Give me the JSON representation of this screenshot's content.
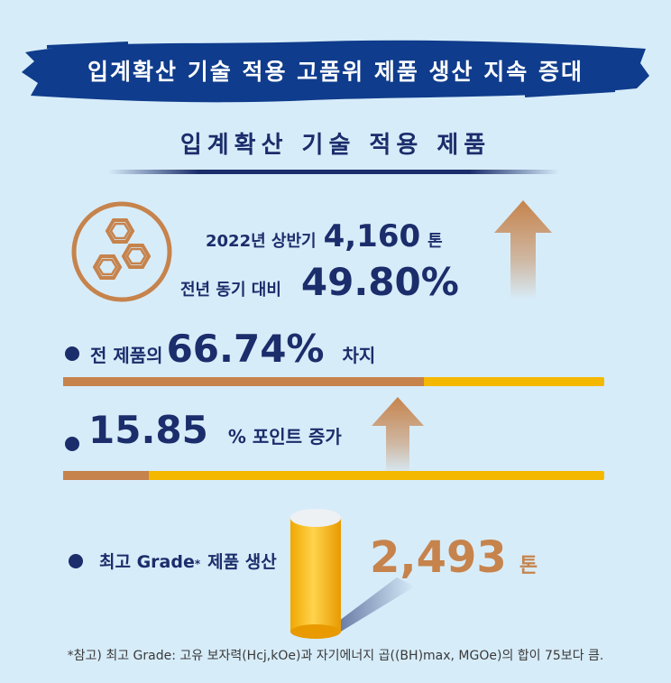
{
  "header": {
    "banner_title": "입계확산 기술 적용 고품위 제품 생산 지속 증대",
    "subtitle": "입계확산 기술 적용 제품"
  },
  "production": {
    "period_label": "2022년 상반기",
    "amount": "4,160",
    "unit": "톤",
    "yoy_label": "전년 동기 대비",
    "yoy_value": "49.80%"
  },
  "share": {
    "prefix": "전 제품의",
    "value": "66.74%",
    "suffix": "차지",
    "fraction": 0.6674
  },
  "increase": {
    "value": "15.85",
    "suffix": "% 포인트 증가",
    "fraction": 0.1585
  },
  "top_grade": {
    "label_main": "최고 Grade",
    "label_mark": "*",
    "label_tail": "제품 생산",
    "amount": "2,493",
    "unit": "톤"
  },
  "footnote": "*참고) 최고 Grade: 고유 보자력(Hcj,kOe)과 자기에너지 곱((BH)max, MGOe)의 합이 75보다 큼.",
  "colors": {
    "navy": "#1b2d6b",
    "orange": "#c6834c",
    "yellow": "#f5b800",
    "background": "#d7ecf9"
  }
}
